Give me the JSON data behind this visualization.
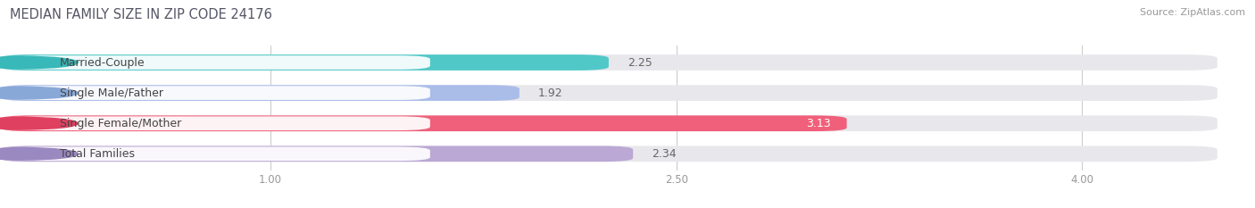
{
  "title": "MEDIAN FAMILY SIZE IN ZIP CODE 24176",
  "source": "Source: ZipAtlas.com",
  "categories": [
    "Married-Couple",
    "Single Male/Father",
    "Single Female/Mother",
    "Total Families"
  ],
  "values": [
    2.25,
    1.92,
    3.13,
    2.34
  ],
  "bar_colors": [
    "#50C8C8",
    "#AABCE8",
    "#F0607A",
    "#BBA8D4"
  ],
  "dot_colors": [
    "#38B8B8",
    "#88A8D8",
    "#E04060",
    "#9A88C0"
  ],
  "background_color": "#ffffff",
  "bar_bg_color": "#e8e8ec",
  "xlim_data": [
    0.0,
    4.5
  ],
  "xaxis_min": 1.0,
  "xticks": [
    1.0,
    2.5,
    4.0
  ],
  "xtick_labels": [
    "1.00",
    "2.50",
    "4.00"
  ],
  "bar_height": 0.52,
  "bar_gap": 0.18,
  "figsize": [
    14.06,
    2.33
  ],
  "dpi": 100,
  "value_label_inside": [
    false,
    false,
    true,
    false
  ],
  "title_fontsize": 10.5,
  "source_fontsize": 8,
  "label_fontsize": 9,
  "value_fontsize": 9,
  "tick_fontsize": 8.5
}
